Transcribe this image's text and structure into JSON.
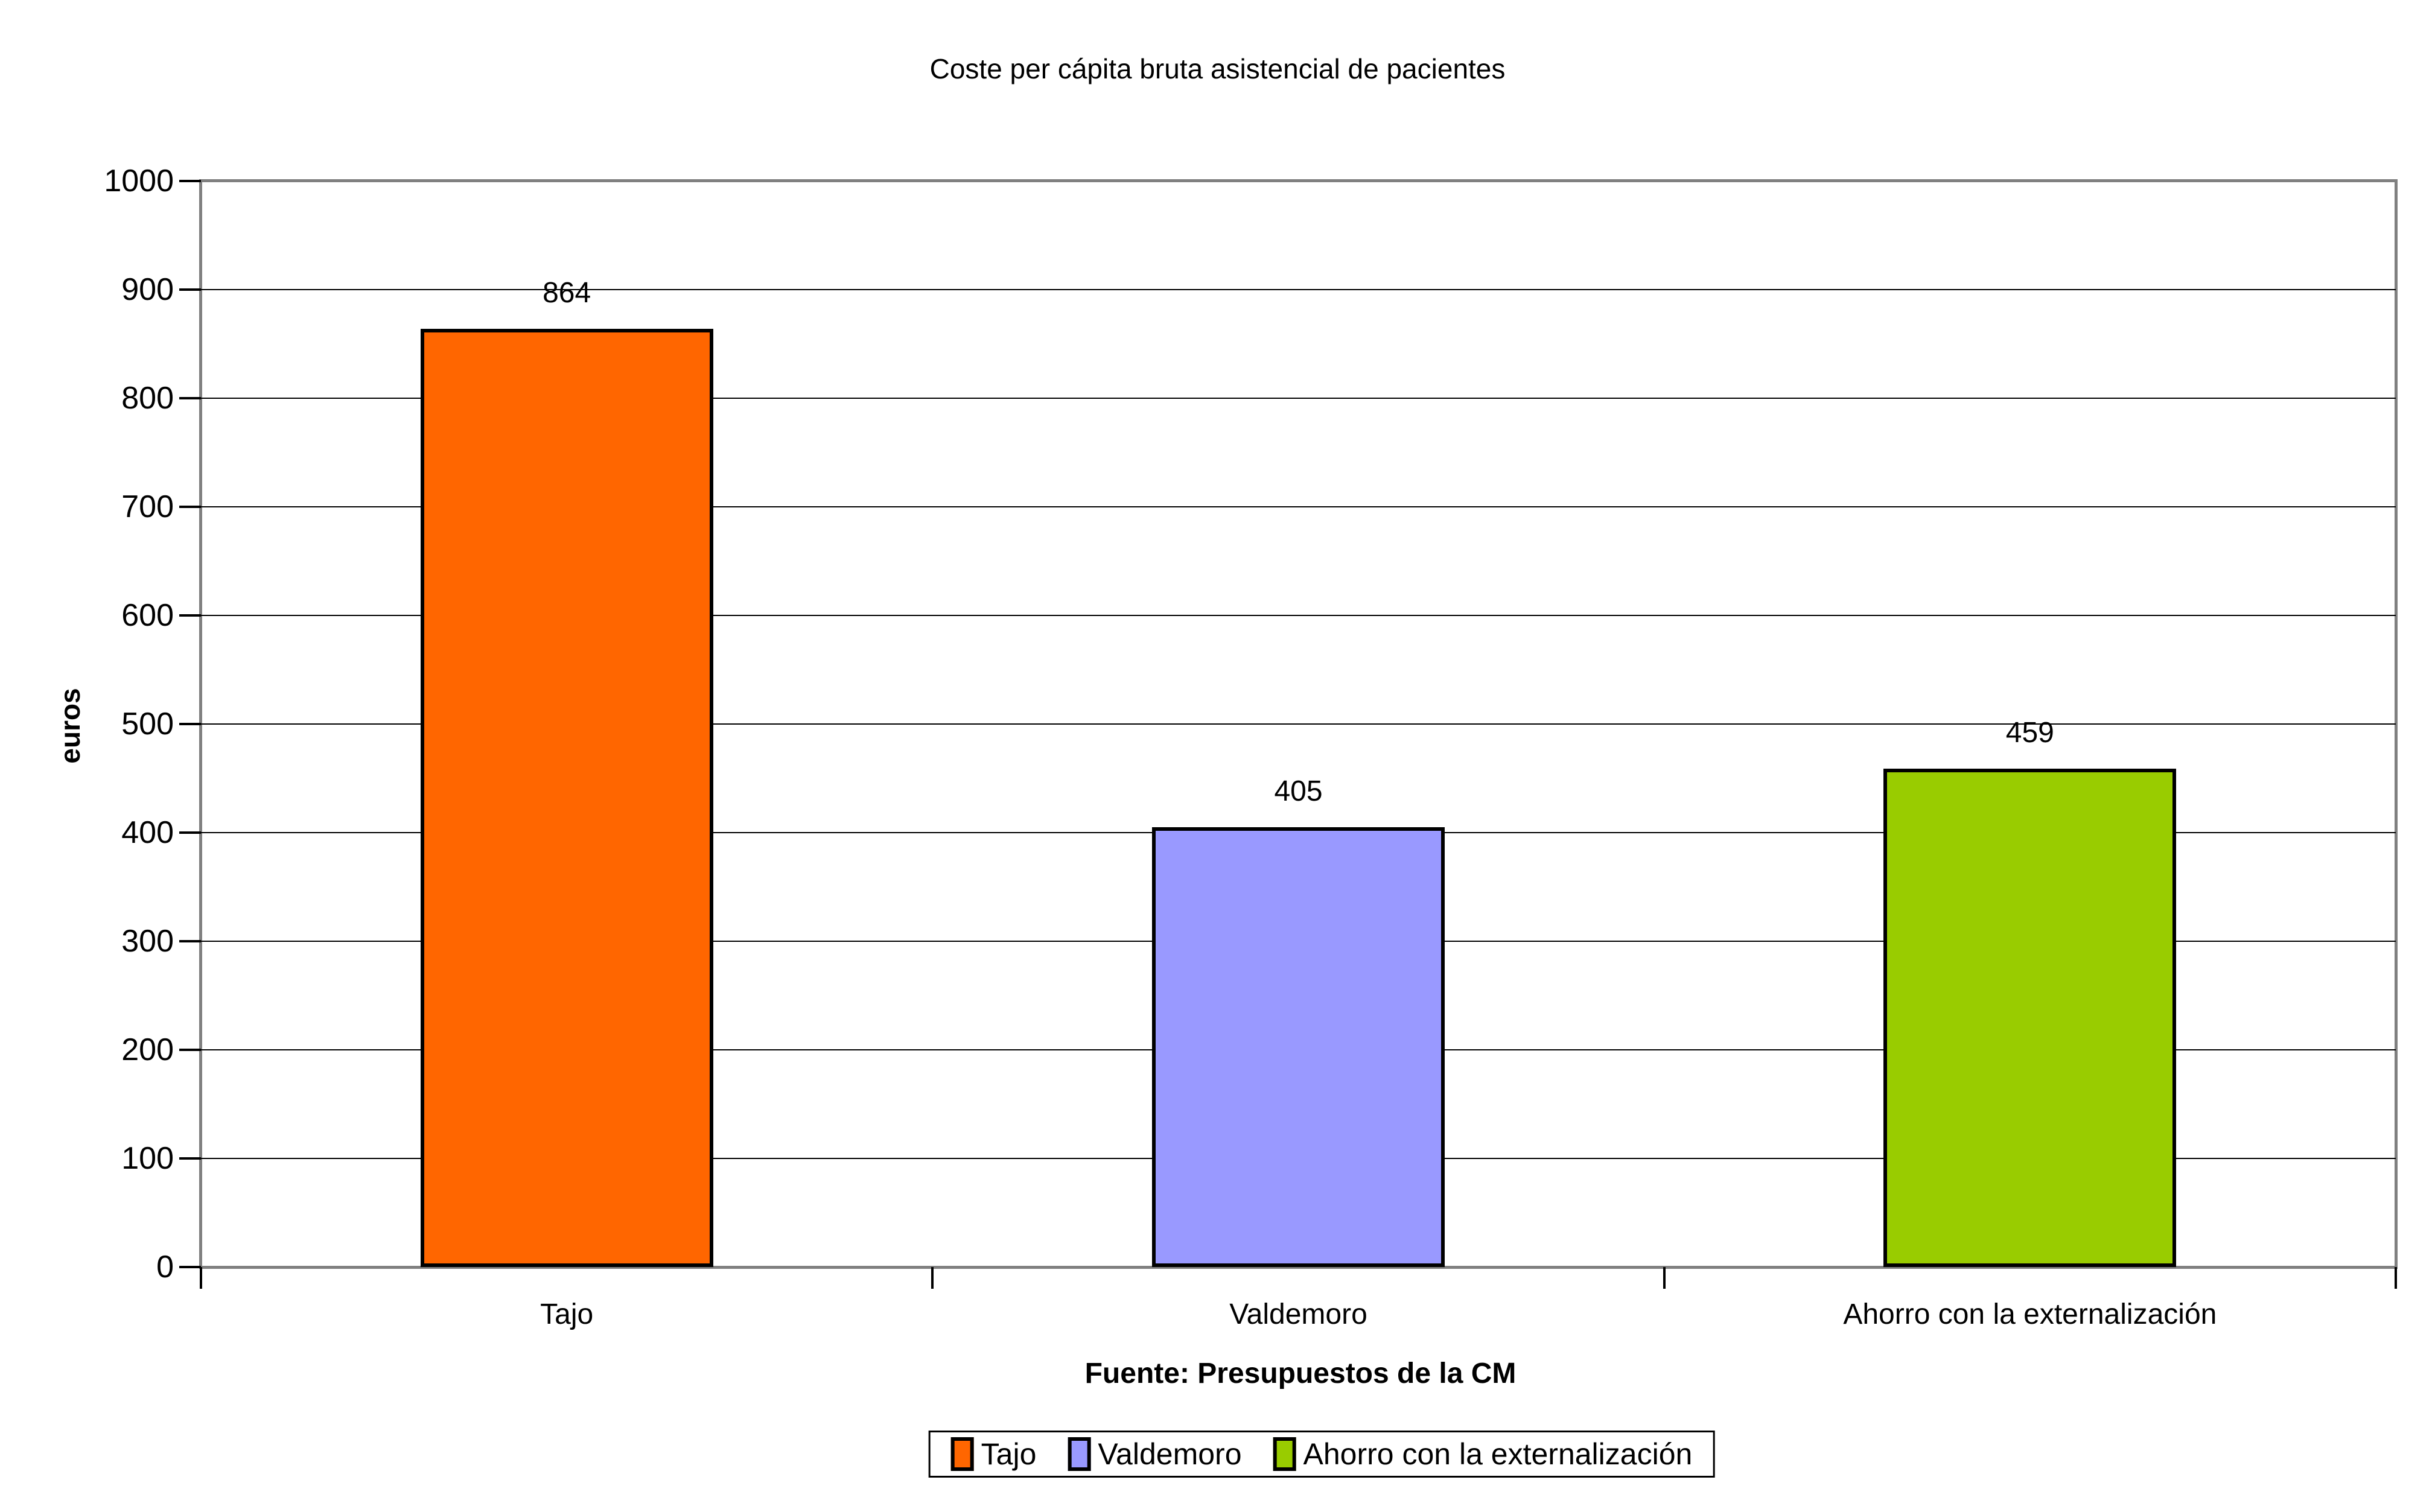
{
  "chart_data": {
    "type": "bar",
    "title": "Coste per cápita bruta asistencial de pacientes",
    "categories": [
      "Tajo",
      "Valdemoro",
      "Ahorro con la externalización"
    ],
    "values": [
      864,
      405,
      459
    ],
    "data_labels": [
      "864",
      "405",
      "459"
    ],
    "bar_colors": [
      "#FF6600",
      "#9999FF",
      "#99CC00"
    ],
    "xlabel": "Fuente: Presupuestos de la CM",
    "ylabel": "euros",
    "ylim": [
      0,
      1000
    ],
    "ytick_step": 100,
    "ytick_labels": [
      "0",
      "100",
      "200",
      "300",
      "400",
      "500",
      "600",
      "700",
      "800",
      "900",
      "1000"
    ],
    "grid": true,
    "legend": {
      "position": "bottom",
      "entries": [
        {
          "label": "Tajo",
          "color": "#FF6600"
        },
        {
          "label": "Valdemoro",
          "color": "#9999FF"
        },
        {
          "label": "Ahorro con la externalización",
          "color": "#99CC00"
        }
      ]
    },
    "styles": {
      "background": "#FFFFFF",
      "plot_border_color": "#808080",
      "gridline_color": "#000000",
      "bar_border_color": "#000000",
      "text_color": "#000000"
    }
  }
}
